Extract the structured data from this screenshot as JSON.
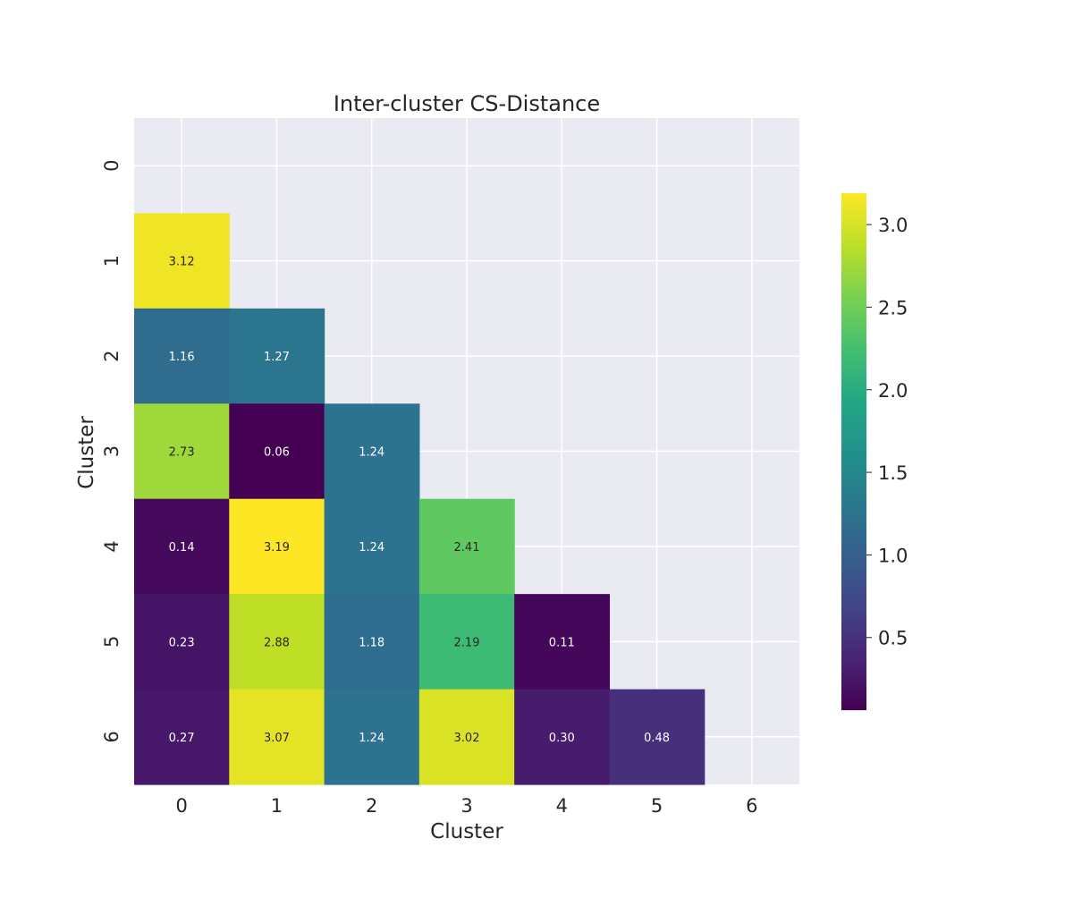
{
  "chart_data": {
    "type": "heatmap",
    "title": "Inter-cluster CS-Distance",
    "xlabel": "Cluster",
    "ylabel": "Cluster",
    "x_categories": [
      "0",
      "1",
      "2",
      "3",
      "4",
      "5",
      "6"
    ],
    "y_categories": [
      "0",
      "1",
      "2",
      "3",
      "4",
      "5",
      "6"
    ],
    "mask": "upper-triangle-including-diagonal",
    "grid": true,
    "colormap": "viridis",
    "legend_position": "right",
    "colorbar": {
      "range": [
        0.06,
        3.19
      ],
      "ticks": [
        0.5,
        1.0,
        1.5,
        2.0,
        2.5,
        3.0
      ],
      "tick_labels": [
        "0.5",
        "1.0",
        "1.5",
        "2.0",
        "2.5",
        "3.0"
      ]
    },
    "values": [
      [
        null,
        null,
        null,
        null,
        null,
        null,
        null
      ],
      [
        3.12,
        null,
        null,
        null,
        null,
        null,
        null
      ],
      [
        1.16,
        1.27,
        null,
        null,
        null,
        null,
        null
      ],
      [
        2.73,
        0.06,
        1.24,
        null,
        null,
        null,
        null
      ],
      [
        0.14,
        3.19,
        1.24,
        2.41,
        null,
        null,
        null
      ],
      [
        0.23,
        2.88,
        1.18,
        2.19,
        0.11,
        null,
        null
      ],
      [
        0.27,
        3.07,
        1.24,
        3.02,
        0.3,
        0.48,
        null
      ]
    ],
    "labels": [
      [
        null,
        null,
        null,
        null,
        null,
        null,
        null
      ],
      [
        "3.12",
        null,
        null,
        null,
        null,
        null,
        null
      ],
      [
        "1.16",
        "1.27",
        null,
        null,
        null,
        null,
        null
      ],
      [
        "2.73",
        "0.06",
        "1.24",
        null,
        null,
        null,
        null
      ],
      [
        "0.14",
        "3.19",
        "1.24",
        "2.41",
        null,
        null,
        null
      ],
      [
        "0.23",
        "2.88",
        "1.18",
        "2.19",
        "0.11",
        null,
        null
      ],
      [
        "0.27",
        "3.07",
        "1.24",
        "3.02",
        "0.30",
        "0.48",
        null
      ]
    ]
  }
}
